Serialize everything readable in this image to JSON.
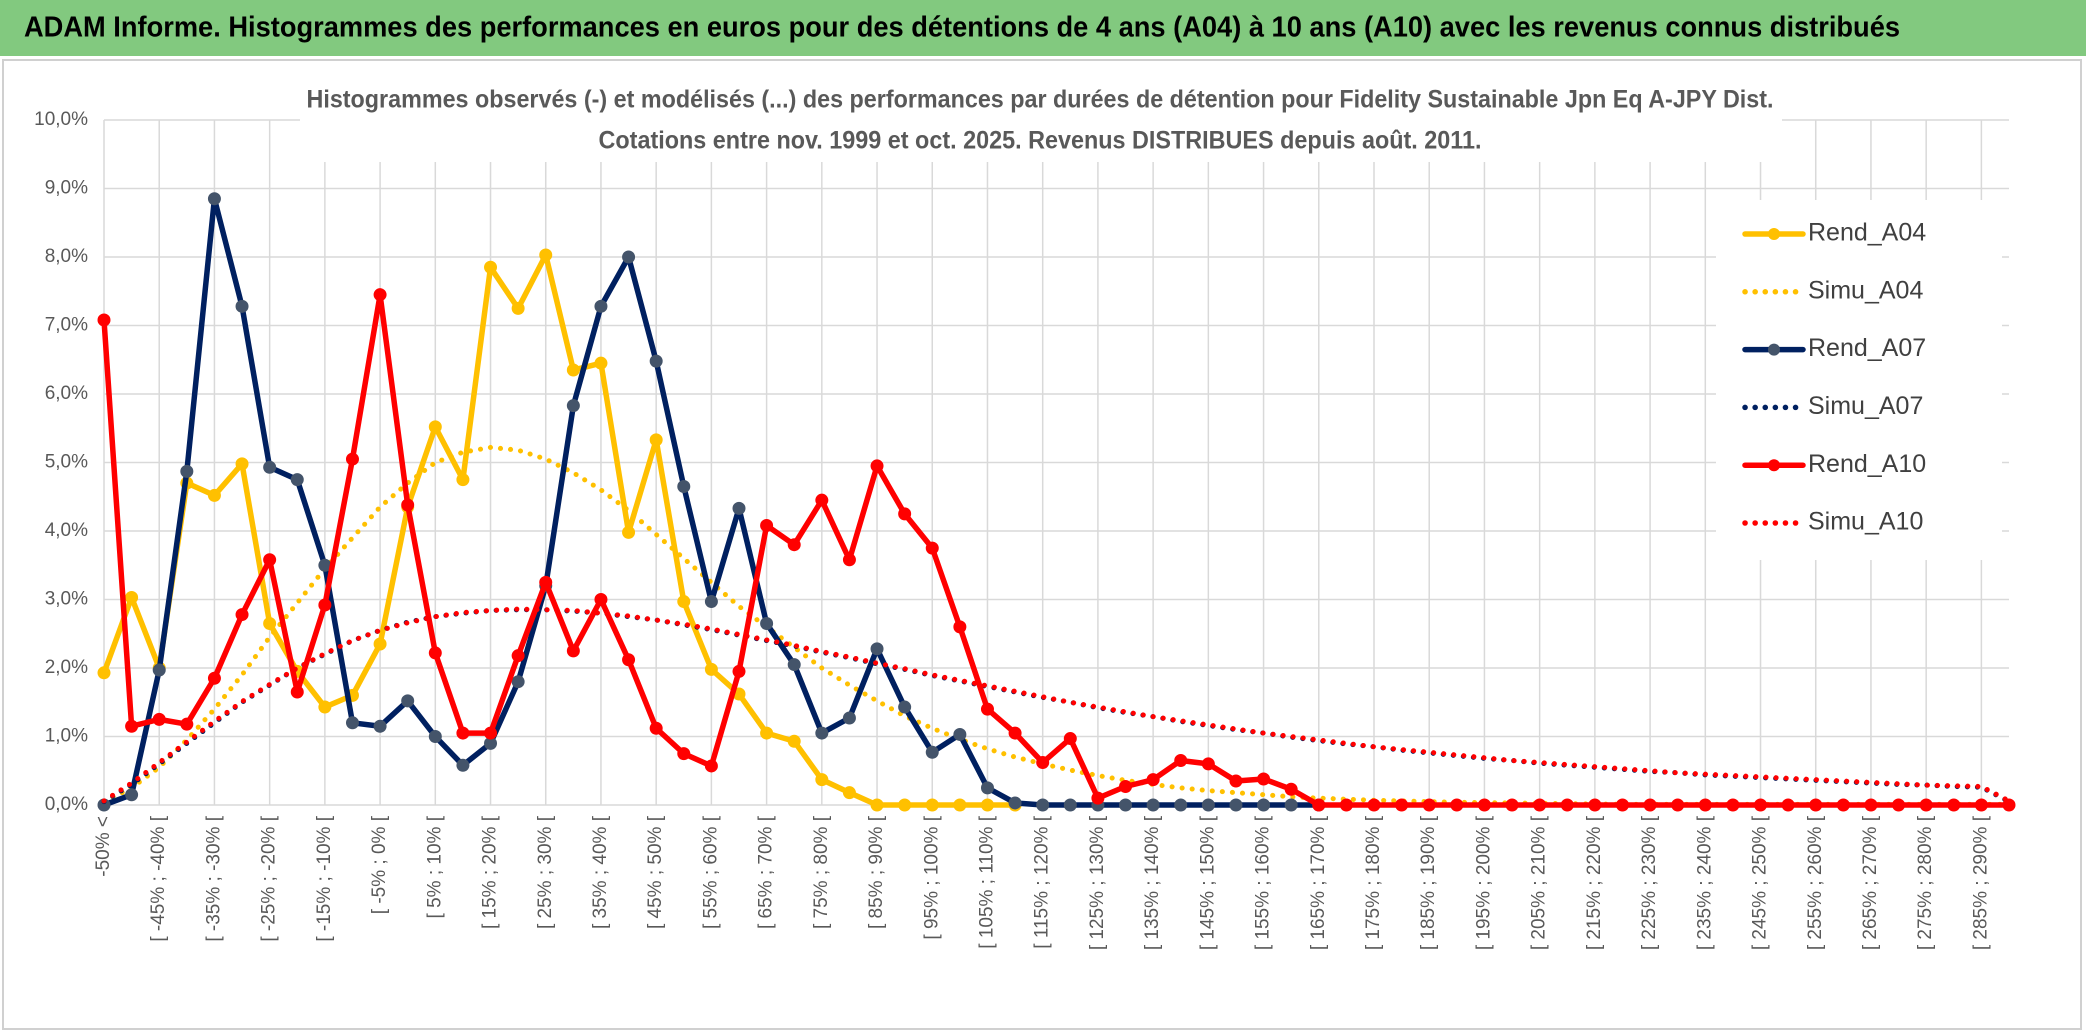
{
  "header": {
    "title": "ADAM Informe. Histogrammes des performances en euros pour des détentions de 4 ans (A04) à 10 ans (A10) avec les revenus connus distribués"
  },
  "chart_data": {
    "type": "line",
    "title": "Histogrammes observés (-) et modélisés (...) des performances par durées de détention pour Fidelity Sustainable Jpn Eq A-JPY Dist.",
    "subtitle": "Cotations entre nov. 1999 et oct. 2025. Revenus DISTRIBUES depuis août. 2011.",
    "categories": [
      "-50% <",
      null,
      "[ -45% ; -40% [",
      null,
      "[ -35% ; -30% [",
      null,
      "[ -25% ; -20% [",
      null,
      "[ -15% ; -10% [",
      null,
      "[ -5% ; 0% [",
      null,
      "[ 5% ; 10% [",
      null,
      "[ 15% ; 20% [",
      null,
      "[ 25% ; 30% [",
      null,
      "[ 35% ; 40% [",
      null,
      "[ 45% ; 50% [",
      null,
      "[ 55% ; 60% [",
      null,
      "[ 65% ; 70% [",
      null,
      "[ 75% ; 80% [",
      null,
      "[ 85% ; 90% [",
      null,
      "[ 95% ; 100% [",
      null,
      "[ 105% ; 110% [",
      null,
      "[ 115% ; 120% [",
      null,
      "[ 125% ; 130% [",
      null,
      "[ 135% ; 140% [",
      null,
      "[ 145% ; 150% [",
      null,
      "[ 155% ; 160% [",
      null,
      "[ 165% ; 170% [",
      null,
      "[ 175% ; 180% [",
      null,
      "[ 185% ; 190% [",
      null,
      "[ 195% ; 200% [",
      null,
      "[ 205% ; 210% [",
      null,
      "[ 215% ; 220% [",
      null,
      "[ 225% ; 230% [",
      null,
      "[ 235% ; 240% [",
      null,
      "[ 245% ; 250% [",
      null,
      "[ 255% ; 260% [",
      null,
      "[ 265% ; 270% [",
      null,
      "[ 275% ; 280% [",
      null,
      "[ 285% ; 290% [",
      null
    ],
    "ylim": [
      0,
      10
    ],
    "yticks": [
      {
        "value": 0,
        "label": "0,0%"
      },
      {
        "value": 1,
        "label": "1,0%"
      },
      {
        "value": 2,
        "label": "2,0%"
      },
      {
        "value": 3,
        "label": "3,0%"
      },
      {
        "value": 4,
        "label": "4,0%"
      },
      {
        "value": 5,
        "label": "5,0%"
      },
      {
        "value": 6,
        "label": "6,0%"
      },
      {
        "value": 7,
        "label": "7,0%"
      },
      {
        "value": 8,
        "label": "8,0%"
      },
      {
        "value": 9,
        "label": "9,0%"
      },
      {
        "value": 10,
        "label": "10,0%"
      }
    ],
    "grid": true,
    "legend": "right",
    "series": [
      {
        "name": "Rend_A04",
        "color": "#ffc000",
        "line_style": "solid",
        "marker": true,
        "marker_color": "#ffc000",
        "values": [
          1.93,
          3.03,
          2.0,
          4.7,
          4.52,
          4.98,
          2.65,
          1.95,
          1.43,
          1.6,
          2.35,
          4.35,
          5.52,
          4.75,
          7.85,
          7.25,
          8.03,
          6.35,
          6.45,
          3.98,
          5.33,
          2.97,
          1.98,
          1.62,
          1.05,
          0.93,
          0.37,
          0.18,
          0,
          0,
          0,
          0,
          0,
          0,
          null,
          null,
          null,
          null,
          null,
          null,
          null,
          null,
          null,
          null,
          null,
          null,
          null,
          null,
          null,
          null,
          null,
          null,
          null,
          null,
          null,
          null,
          null,
          null,
          null,
          null,
          null,
          null,
          null,
          null,
          null,
          null,
          null,
          null,
          null,
          null
        ]
      },
      {
        "name": "Simu_A04",
        "color": "#ffc000",
        "line_style": "dotted",
        "marker": false,
        "values": [
          0.05,
          0.25,
          0.55,
          0.95,
          1.4,
          1.9,
          2.45,
          2.95,
          3.45,
          3.9,
          4.35,
          4.7,
          5.0,
          5.15,
          5.22,
          5.18,
          5.05,
          4.85,
          4.6,
          4.3,
          3.95,
          3.6,
          3.25,
          2.9,
          2.6,
          2.3,
          2.0,
          1.75,
          1.52,
          1.3,
          1.12,
          0.96,
          0.82,
          0.7,
          0.6,
          0.51,
          0.43,
          0.36,
          0.3,
          0.25,
          0.21,
          0.18,
          0.15,
          0.12,
          0.1,
          0.085,
          0.07,
          0.06,
          0.05,
          0.04,
          0.035,
          0.03,
          0.025,
          0.02,
          0.015,
          0.01,
          0.01,
          0.01,
          0.01,
          0.01,
          0.01,
          0.01,
          0.01,
          0.01,
          0.01,
          0.01,
          0.01,
          0.01,
          0.01,
          0.01
        ]
      },
      {
        "name": "Rend_A07",
        "color": "#002060",
        "line_style": "solid",
        "marker": true,
        "marker_color": "#44546a",
        "values": [
          0,
          0.15,
          1.97,
          4.87,
          8.85,
          7.28,
          4.93,
          4.75,
          3.5,
          1.2,
          1.15,
          1.52,
          1.0,
          0.58,
          0.9,
          1.8,
          3.2,
          5.83,
          7.28,
          8.0,
          6.48,
          4.65,
          2.97,
          4.33,
          2.65,
          2.05,
          1.05,
          1.27,
          2.28,
          1.43,
          0.77,
          1.03,
          0.25,
          0.03,
          0,
          0,
          0,
          0,
          0,
          0,
          0,
          0,
          0,
          0,
          0,
          null,
          null,
          null,
          null,
          null,
          null,
          null,
          null,
          null,
          null,
          null,
          null,
          null,
          null,
          null,
          null,
          null,
          null,
          null,
          null,
          null,
          null,
          null,
          null,
          null
        ]
      },
      {
        "name": "Simu_A07",
        "color": "#002060",
        "line_style": "dotted",
        "marker": false,
        "values": [
          0.05,
          0.3,
          0.6,
          0.9,
          1.2,
          1.5,
          1.75,
          2.0,
          2.2,
          2.4,
          2.55,
          2.67,
          2.75,
          2.8,
          2.84,
          2.85,
          2.85,
          2.83,
          2.8,
          2.75,
          2.7,
          2.63,
          2.56,
          2.48,
          2.4,
          2.32,
          2.23,
          2.15,
          2.06,
          1.98,
          1.89,
          1.81,
          1.73,
          1.65,
          1.57,
          1.5,
          1.42,
          1.35,
          1.29,
          1.22,
          1.16,
          1.1,
          1.05,
          0.99,
          0.94,
          0.89,
          0.85,
          0.8,
          0.76,
          0.72,
          0.68,
          0.65,
          0.61,
          0.58,
          0.55,
          0.52,
          0.49,
          0.47,
          0.44,
          0.42,
          0.4,
          0.38,
          0.36,
          0.34,
          0.32,
          0.3,
          0.29,
          0.27,
          0.26,
          0.05
        ]
      },
      {
        "name": "Rend_A10",
        "color": "#ff0000",
        "line_style": "solid",
        "marker": true,
        "marker_color": "#ff0000",
        "values": [
          7.08,
          1.15,
          1.25,
          1.18,
          1.85,
          2.78,
          3.58,
          1.65,
          2.92,
          5.05,
          7.45,
          4.38,
          2.22,
          1.05,
          1.05,
          2.18,
          3.25,
          2.25,
          3.0,
          2.12,
          1.12,
          0.75,
          0.57,
          1.95,
          4.08,
          3.8,
          4.45,
          3.58,
          4.95,
          4.25,
          3.75,
          2.6,
          1.4,
          1.05,
          0.62,
          0.97,
          0.1,
          0.27,
          0.37,
          0.65,
          0.6,
          0.35,
          0.38,
          0.23,
          0,
          0,
          0,
          0,
          0,
          0,
          0,
          0,
          0,
          0,
          0,
          0,
          0,
          0,
          0,
          0,
          0,
          0,
          0,
          0,
          0,
          0,
          0,
          0,
          0,
          0
        ]
      },
      {
        "name": "Simu_A10",
        "color": "#ff0000",
        "line_style": "dotted",
        "marker": false,
        "values": [
          0.06,
          0.32,
          0.62,
          0.92,
          1.22,
          1.51,
          1.76,
          2.0,
          2.21,
          2.4,
          2.55,
          2.66,
          2.75,
          2.81,
          2.84,
          2.86,
          2.85,
          2.84,
          2.8,
          2.76,
          2.7,
          2.64,
          2.57,
          2.49,
          2.41,
          2.33,
          2.24,
          2.16,
          2.07,
          1.99,
          1.9,
          1.82,
          1.74,
          1.66,
          1.58,
          1.5,
          1.43,
          1.36,
          1.29,
          1.23,
          1.17,
          1.11,
          1.05,
          1.0,
          0.95,
          0.9,
          0.85,
          0.81,
          0.77,
          0.73,
          0.69,
          0.65,
          0.62,
          0.59,
          0.56,
          0.53,
          0.5,
          0.47,
          0.45,
          0.43,
          0.41,
          0.39,
          0.37,
          0.35,
          0.33,
          0.31,
          0.29,
          0.28,
          0.27,
          0.06
        ]
      }
    ]
  }
}
